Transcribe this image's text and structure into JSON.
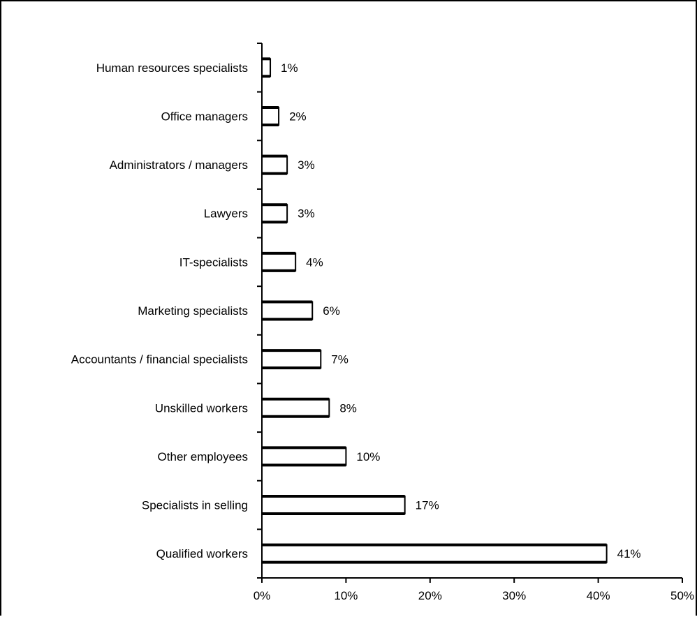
{
  "chart_data": {
    "type": "bar",
    "orientation": "horizontal",
    "categories": [
      "Human resources specialists",
      "Office managers",
      "Administrators / managers",
      "Lawyers",
      "IT-specialists",
      "Marketing specialists",
      "Accountants / financial specialists",
      "Unskilled workers",
      "Other employees",
      "Specialists in selling",
      "Qualified workers"
    ],
    "values": [
      1,
      2,
      3,
      3,
      4,
      6,
      7,
      8,
      10,
      17,
      41
    ],
    "data_labels": [
      "1%",
      "2%",
      "3%",
      "3%",
      "4%",
      "6%",
      "7%",
      "8%",
      "10%",
      "17%",
      "41%"
    ],
    "xticks": [
      0,
      10,
      20,
      30,
      40,
      50
    ],
    "xtick_labels": [
      "0%",
      "10%",
      "20%",
      "30%",
      "40%",
      "50%"
    ],
    "xlim": [
      0,
      50
    ],
    "title": "",
    "xlabel": "",
    "ylabel": "",
    "grid": false,
    "legend": "none",
    "bar_fill": "#ffffff",
    "bar_stroke": "#000000"
  }
}
